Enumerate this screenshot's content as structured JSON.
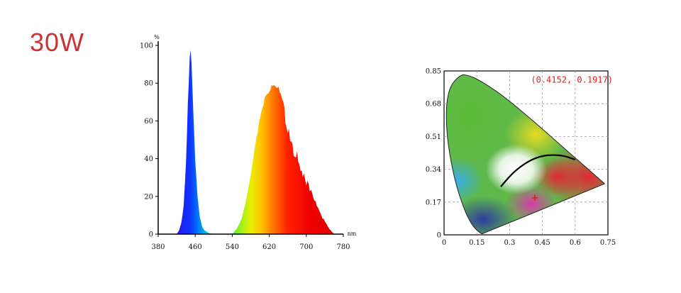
{
  "power_label": "30W",
  "chart_data": [
    {
      "type": "area",
      "ylabel": "%",
      "xlabel": "nm",
      "xlim": [
        380,
        780
      ],
      "ylim": [
        0,
        100
      ],
      "xticks": [
        380,
        460,
        540,
        620,
        700,
        780
      ],
      "yticks": [
        0,
        20,
        40,
        60,
        80,
        100
      ],
      "fill": "spectral-rainbow",
      "x": [
        420,
        425,
        430,
        435,
        440,
        444,
        448,
        450,
        452,
        455,
        460,
        465,
        470,
        475,
        480,
        490,
        500,
        540,
        550,
        560,
        570,
        580,
        590,
        600,
        610,
        620,
        630,
        635,
        640,
        645,
        650,
        660,
        670,
        680,
        690,
        700,
        710,
        720,
        730,
        740,
        750,
        760
      ],
      "y": [
        0,
        2,
        6,
        15,
        38,
        70,
        95,
        100,
        93,
        72,
        40,
        20,
        9,
        4,
        2,
        0.5,
        0,
        0,
        3,
        8,
        18,
        32,
        48,
        63,
        73,
        78,
        81,
        80,
        79,
        76,
        71,
        61,
        50,
        44,
        37,
        30,
        24,
        18,
        12,
        7,
        3,
        0
      ]
    },
    {
      "type": "scatter",
      "subtype": "cie-1931-chromaticity",
      "xlim": [
        0,
        0.75
      ],
      "ylim": [
        0,
        0.85
      ],
      "xticks": [
        "0",
        "0.15",
        "0.3",
        "0.45",
        "0.6",
        "0.75"
      ],
      "yticks": [
        "0",
        "0.17",
        "0.34",
        "0.51",
        "0.68",
        "0.85"
      ],
      "grid": true,
      "points": [
        {
          "x": 0.4152,
          "y": 0.1917,
          "color": "#e0201c"
        }
      ],
      "point_label": "(0.4152, 0.1917)",
      "planckian_locus": [
        {
          "x": 0.26,
          "y": 0.25
        },
        {
          "x": 0.3,
          "y": 0.305
        },
        {
          "x": 0.35,
          "y": 0.355
        },
        {
          "x": 0.4,
          "y": 0.39
        },
        {
          "x": 0.45,
          "y": 0.41
        },
        {
          "x": 0.5,
          "y": 0.415
        },
        {
          "x": 0.55,
          "y": 0.41
        },
        {
          "x": 0.6,
          "y": 0.39
        }
      ],
      "spectral_locus": [
        {
          "x": 0.174,
          "y": 0.005
        },
        {
          "x": 0.166,
          "y": 0.009
        },
        {
          "x": 0.144,
          "y": 0.03
        },
        {
          "x": 0.124,
          "y": 0.058
        },
        {
          "x": 0.091,
          "y": 0.133
        },
        {
          "x": 0.045,
          "y": 0.295
        },
        {
          "x": 0.008,
          "y": 0.538
        },
        {
          "x": 0.014,
          "y": 0.75
        },
        {
          "x": 0.074,
          "y": 0.834
        },
        {
          "x": 0.115,
          "y": 0.826
        },
        {
          "x": 0.155,
          "y": 0.806
        },
        {
          "x": 0.229,
          "y": 0.754
        },
        {
          "x": 0.302,
          "y": 0.692
        },
        {
          "x": 0.373,
          "y": 0.624
        },
        {
          "x": 0.444,
          "y": 0.555
        },
        {
          "x": 0.512,
          "y": 0.487
        },
        {
          "x": 0.575,
          "y": 0.424
        },
        {
          "x": 0.627,
          "y": 0.373
        },
        {
          "x": 0.666,
          "y": 0.334
        },
        {
          "x": 0.692,
          "y": 0.308
        },
        {
          "x": 0.735,
          "y": 0.265
        }
      ]
    }
  ]
}
